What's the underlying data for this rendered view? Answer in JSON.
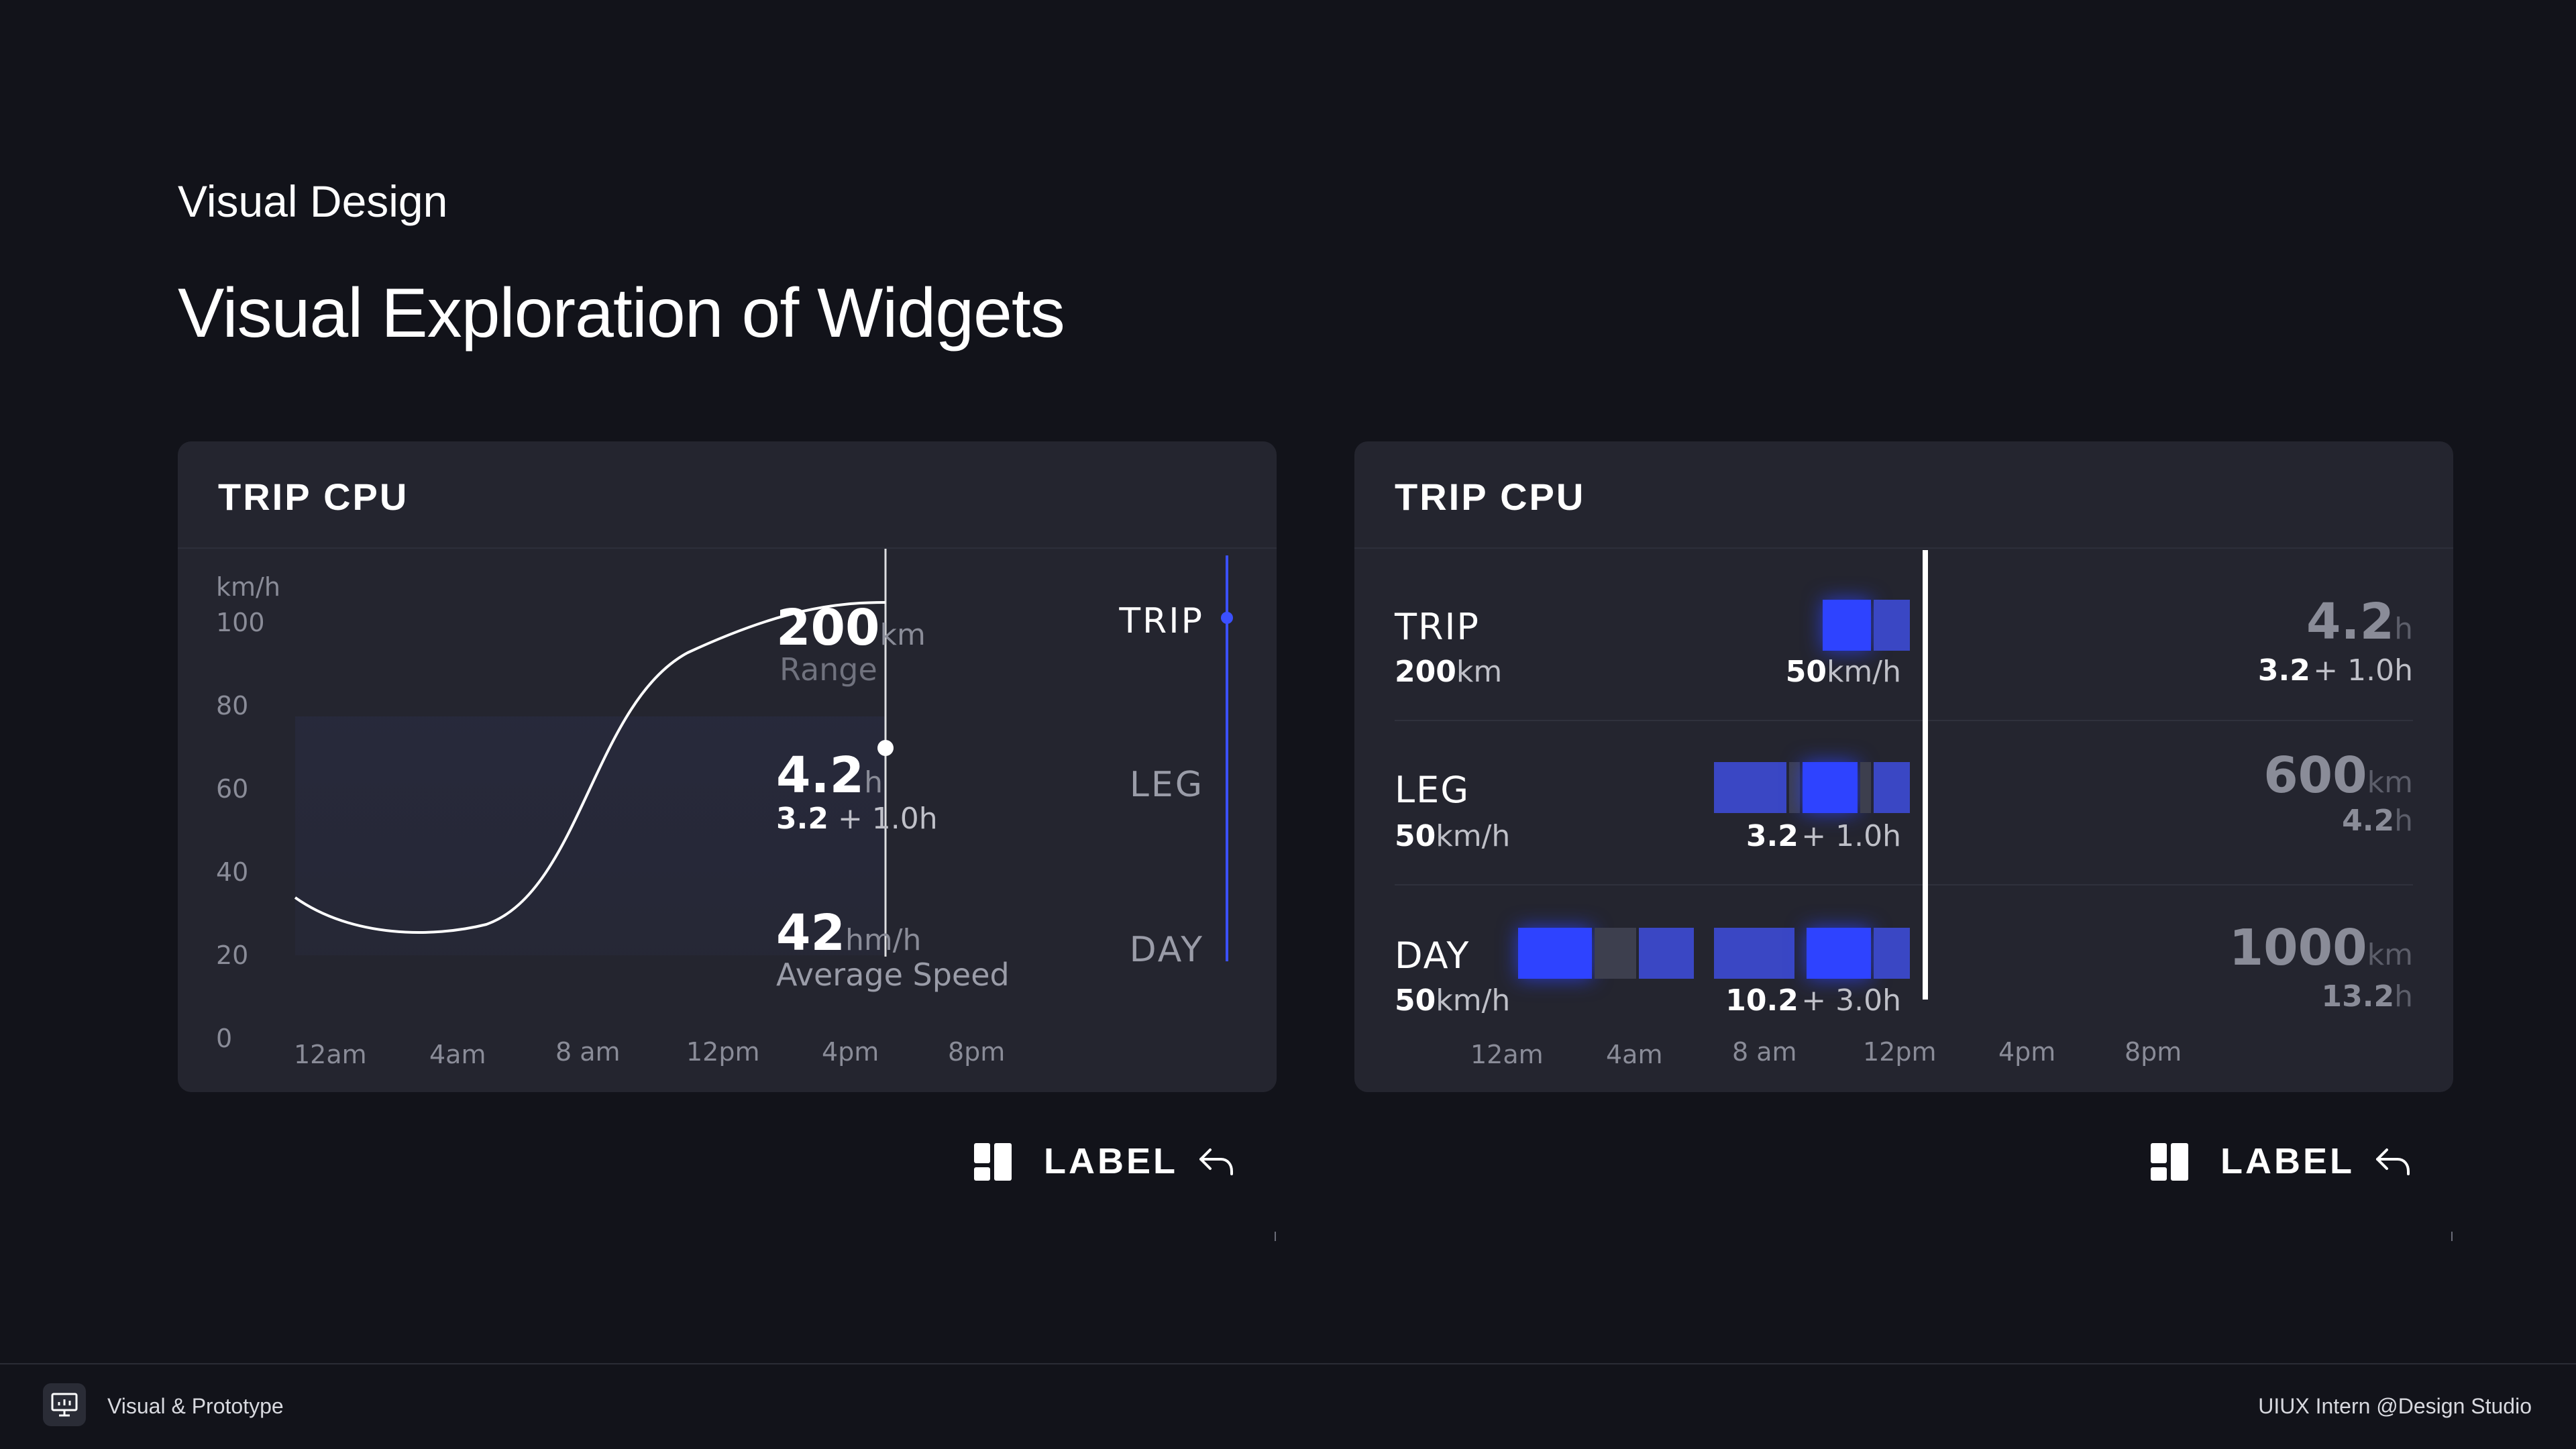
{
  "header": {
    "section": "Visual Design",
    "title": "Visual Exploration of Widgets"
  },
  "card1": {
    "title": "TRIP CPU",
    "y_unit": "km/h",
    "y_ticks": [
      "100",
      "80",
      "60",
      "40",
      "20",
      "0"
    ],
    "x_ticks": [
      "12am",
      "4am",
      "8 am",
      "12pm",
      "4pm",
      "8pm"
    ],
    "stats": {
      "range_value": "200",
      "range_unit": "km",
      "range_label": "Range",
      "time_value": "4.2",
      "time_unit": "h",
      "time_base": "3.2",
      "time_extra": "+ 1.0h",
      "speed_value": "42",
      "speed_unit": "hm/h",
      "speed_label": "Average Speed"
    },
    "tabs": [
      "TRIP",
      "LEG",
      "DAY"
    ],
    "selected_tab": "TRIP"
  },
  "card2": {
    "title": "TRIP CPU",
    "rows": [
      {
        "label": "TRIP",
        "sub_value": "200",
        "sub_unit": "km",
        "bar_value": "50",
        "bar_unit": "km/h",
        "bar_extra": "",
        "right_big": "4.2",
        "right_big_unit": "h",
        "right_sub": "3.2",
        "right_sub_extra": "+ 1.0h"
      },
      {
        "label": "LEG",
        "sub_value": "50",
        "sub_unit": "km/h",
        "bar_value": "3.2",
        "bar_unit": "",
        "bar_extra": "+ 1.0h",
        "right_big": "600",
        "right_big_unit": "km",
        "right_sub": "4.2",
        "right_sub_extra": "h"
      },
      {
        "label": "DAY",
        "sub_value": "50",
        "sub_unit": "km/h",
        "bar_value": "10.2",
        "bar_unit": "",
        "bar_extra": "+ 3.0h",
        "right_big": "1000",
        "right_big_unit": "km",
        "right_sub": "13.2",
        "right_sub_extra": "h"
      }
    ],
    "x_ticks": [
      "12am",
      "4am",
      "8 am",
      "12pm",
      "4pm",
      "8pm"
    ]
  },
  "label_bar": {
    "text": "LABEL"
  },
  "footer": {
    "left": "Visual & Prototype",
    "right": "UIUX Intern @Design Studio"
  },
  "colors": {
    "background": "#12131a",
    "card": "#24252f",
    "accent_blue": "#2e43ff",
    "muted_text": "#8a8c98"
  },
  "icons": [
    "dashboard-icon",
    "undo-arrow-icon",
    "presentation-icon"
  ]
}
